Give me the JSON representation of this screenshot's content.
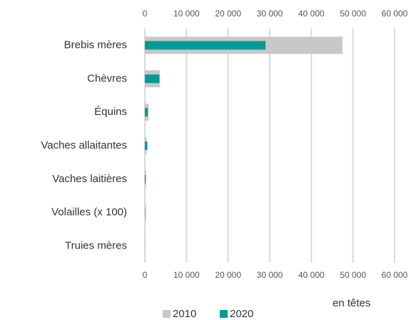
{
  "chart_data": {
    "type": "barh",
    "categories": [
      "Brebis mères",
      "Chèvres",
      "Équins",
      "Vaches allaitantes",
      "Vaches laitières",
      "Volailles (x 100)",
      "Truies mères"
    ],
    "series": [
      {
        "name": "2010",
        "color": "#c8c8c8",
        "values": [
          47500,
          3600,
          900,
          400,
          300,
          300,
          50
        ]
      },
      {
        "name": "2020",
        "color": "#009b96",
        "values": [
          29000,
          3500,
          700,
          600,
          200,
          50,
          20
        ]
      }
    ],
    "xlim": [
      0,
      60000
    ],
    "xticks": [
      0,
      {
        "value": 10000,
        "label": "10 000"
      },
      {
        "value": 20000,
        "label": "20 000"
      },
      {
        "value": 30000,
        "label": "30 000"
      },
      {
        "value": 40000,
        "label": "40 000"
      },
      {
        "value": 50000,
        "label": "50 000"
      },
      {
        "value": 60000,
        "label": "60 000"
      }
    ],
    "x_label": "en têtes",
    "grid": true
  }
}
